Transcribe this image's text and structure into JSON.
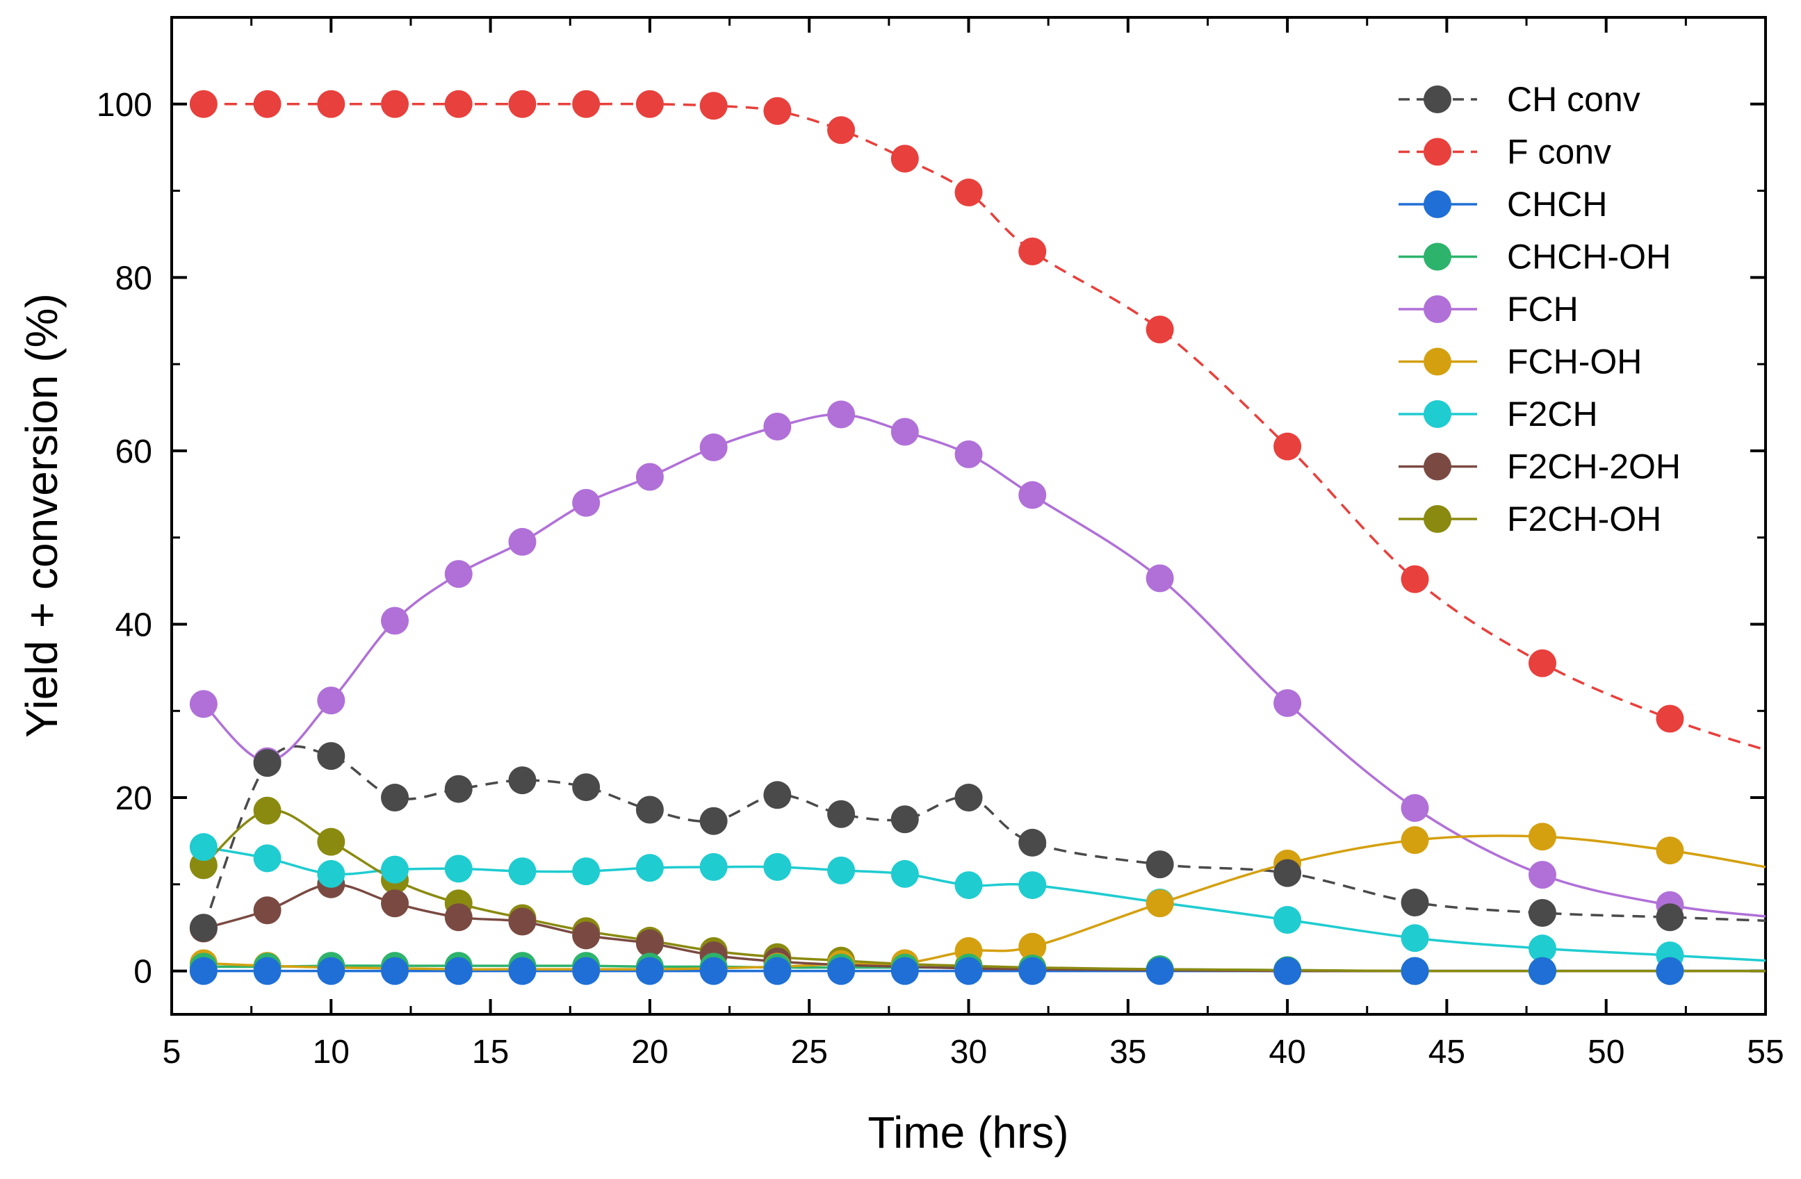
{
  "chart_data": {
    "type": "line",
    "title": "",
    "xlabel": "Time (hrs)",
    "ylabel": "Yield + conversion (%)",
    "xlim": [
      5,
      55
    ],
    "ylim": [
      -5,
      110
    ],
    "xticks": [
      5,
      10,
      15,
      20,
      25,
      30,
      35,
      40,
      45,
      50,
      55
    ],
    "yticks": [
      0,
      20,
      40,
      60,
      80,
      100
    ],
    "grid": false,
    "legend_position": "top-right",
    "series": [
      {
        "name": "CH conv",
        "color": "#4a4a4a",
        "dashed": true,
        "x": [
          6,
          8,
          10,
          12,
          14,
          16,
          18,
          20,
          22,
          24,
          26,
          28,
          30,
          32,
          36,
          40,
          44,
          48,
          52,
          55
        ],
        "y": [
          5,
          24,
          24.8,
          20,
          21,
          22,
          21.2,
          18.6,
          17.3,
          20.3,
          18.1,
          17.5,
          20,
          14.8,
          12.3,
          11.3,
          7.9,
          6.7,
          6.2,
          5.8
        ],
        "markers": [
          true,
          true,
          true,
          true,
          true,
          true,
          true,
          true,
          true,
          true,
          true,
          true,
          true,
          true,
          true,
          true,
          true,
          true,
          true,
          false
        ]
      },
      {
        "name": "F conv",
        "color": "#e8403c",
        "dashed": true,
        "x": [
          6,
          8,
          10,
          12,
          14,
          16,
          18,
          20,
          22,
          24,
          26,
          28,
          30,
          32,
          36,
          40,
          44,
          48,
          52,
          55
        ],
        "y": [
          100,
          100,
          100,
          100,
          100,
          100,
          100,
          100,
          99.8,
          99.2,
          97,
          93.7,
          89.8,
          83,
          74,
          60.5,
          45.2,
          35.5,
          29.1,
          25.5
        ],
        "markers": [
          true,
          true,
          true,
          true,
          true,
          true,
          true,
          true,
          true,
          true,
          true,
          true,
          true,
          true,
          true,
          true,
          true,
          true,
          true,
          false
        ]
      },
      {
        "name": "CHCH",
        "color": "#1f6fd6",
        "dashed": false,
        "x": [
          6,
          8,
          10,
          12,
          14,
          16,
          18,
          20,
          22,
          24,
          26,
          28,
          30,
          32,
          36,
          40,
          44,
          48,
          52,
          55
        ],
        "y": [
          0,
          0,
          0,
          0,
          0,
          0,
          0,
          0,
          0,
          0,
          0,
          0,
          0,
          0,
          0,
          0,
          0,
          0,
          0,
          0
        ],
        "markers": [
          true,
          true,
          true,
          true,
          true,
          true,
          true,
          true,
          true,
          true,
          true,
          true,
          true,
          true,
          true,
          true,
          true,
          true,
          true,
          false
        ]
      },
      {
        "name": "CHCH-OH",
        "color": "#2db36b",
        "dashed": false,
        "x": [
          6,
          8,
          10,
          12,
          14,
          16,
          18,
          20,
          22,
          24,
          26,
          28,
          30,
          32,
          36,
          40,
          44,
          48,
          52,
          55
        ],
        "y": [
          0.5,
          0.5,
          0.6,
          0.6,
          0.6,
          0.6,
          0.6,
          0.5,
          0.5,
          0.4,
          0.4,
          0.4,
          0.4,
          0.3,
          0.2,
          0.1,
          0,
          0,
          0,
          0
        ],
        "markers": [
          true,
          true,
          true,
          true,
          true,
          true,
          true,
          true,
          true,
          true,
          true,
          true,
          true,
          true,
          true,
          true,
          true,
          true,
          true,
          false
        ]
      },
      {
        "name": "FCH",
        "color": "#b070d8",
        "dashed": false,
        "x": [
          6,
          8,
          10,
          12,
          14,
          16,
          18,
          20,
          22,
          24,
          26,
          28,
          30,
          32,
          36,
          40,
          44,
          48,
          52,
          55
        ],
        "y": [
          30.8,
          24.2,
          31.2,
          40.4,
          45.8,
          49.5,
          54,
          57,
          60.4,
          62.8,
          64.2,
          62.2,
          59.6,
          54.9,
          45.3,
          30.9,
          18.8,
          11.1,
          7.6,
          6.3
        ],
        "markers": [
          true,
          true,
          true,
          true,
          true,
          true,
          true,
          true,
          true,
          true,
          true,
          true,
          true,
          true,
          true,
          true,
          true,
          true,
          true,
          false
        ]
      },
      {
        "name": "FCH-OH",
        "color": "#d4a010",
        "dashed": false,
        "x": [
          6,
          8,
          10,
          12,
          14,
          16,
          18,
          20,
          22,
          24,
          26,
          28,
          30,
          32,
          36,
          40,
          44,
          48,
          52,
          55
        ],
        "y": [
          0.9,
          0.6,
          0.4,
          0.3,
          0.2,
          0.2,
          0.2,
          0.2,
          0.3,
          0.5,
          0.8,
          0.9,
          2.3,
          2.8,
          7.8,
          12.4,
          15.1,
          15.5,
          13.9,
          12
        ],
        "markers": [
          true,
          true,
          true,
          true,
          true,
          true,
          true,
          true,
          true,
          true,
          true,
          true,
          true,
          true,
          true,
          true,
          true,
          true,
          true,
          false
        ]
      },
      {
        "name": "F2CH",
        "color": "#1fccd0",
        "dashed": false,
        "x": [
          6,
          8,
          10,
          12,
          14,
          16,
          18,
          20,
          22,
          24,
          26,
          28,
          30,
          32,
          36,
          40,
          44,
          48,
          52,
          55
        ],
        "y": [
          14.3,
          13,
          11.2,
          11.7,
          11.8,
          11.5,
          11.5,
          11.9,
          12,
          12,
          11.6,
          11.2,
          9.9,
          9.9,
          7.9,
          5.9,
          3.8,
          2.6,
          1.8,
          1.2
        ],
        "markers": [
          true,
          true,
          true,
          true,
          true,
          true,
          true,
          true,
          true,
          true,
          true,
          true,
          true,
          true,
          true,
          true,
          true,
          true,
          true,
          false
        ]
      },
      {
        "name": "F2CH-2OH",
        "color": "#7a4a42",
        "dashed": false,
        "x": [
          6,
          8,
          10,
          12,
          14,
          16,
          18,
          20,
          22,
          24,
          26,
          28,
          30,
          32,
          36,
          40,
          44,
          48,
          52,
          55
        ],
        "y": [
          4.9,
          7,
          10,
          7.8,
          6.2,
          5.7,
          4.1,
          3.2,
          1.8,
          1.1,
          0.7,
          0.5,
          0.3,
          0.2,
          0.1,
          0,
          0,
          0,
          0,
          0
        ],
        "markers": [
          true,
          true,
          true,
          true,
          true,
          true,
          true,
          true,
          true,
          true,
          true,
          true,
          true,
          true,
          true,
          true,
          true,
          true,
          true,
          false
        ]
      },
      {
        "name": "F2CH-OH",
        "color": "#8a8a10",
        "dashed": false,
        "x": [
          6,
          8,
          10,
          12,
          14,
          16,
          18,
          20,
          22,
          24,
          26,
          28,
          30,
          32,
          36,
          40,
          44,
          48,
          52,
          55
        ],
        "y": [
          12.2,
          18.5,
          14.9,
          10.5,
          7.8,
          6.1,
          4.6,
          3.5,
          2.3,
          1.6,
          1.2,
          0.8,
          0.6,
          0.4,
          0.2,
          0.1,
          0,
          0,
          0,
          0
        ],
        "markers": [
          true,
          true,
          true,
          true,
          true,
          true,
          true,
          true,
          true,
          true,
          true,
          true,
          true,
          true,
          true,
          true,
          true,
          true,
          true,
          false
        ]
      }
    ]
  }
}
